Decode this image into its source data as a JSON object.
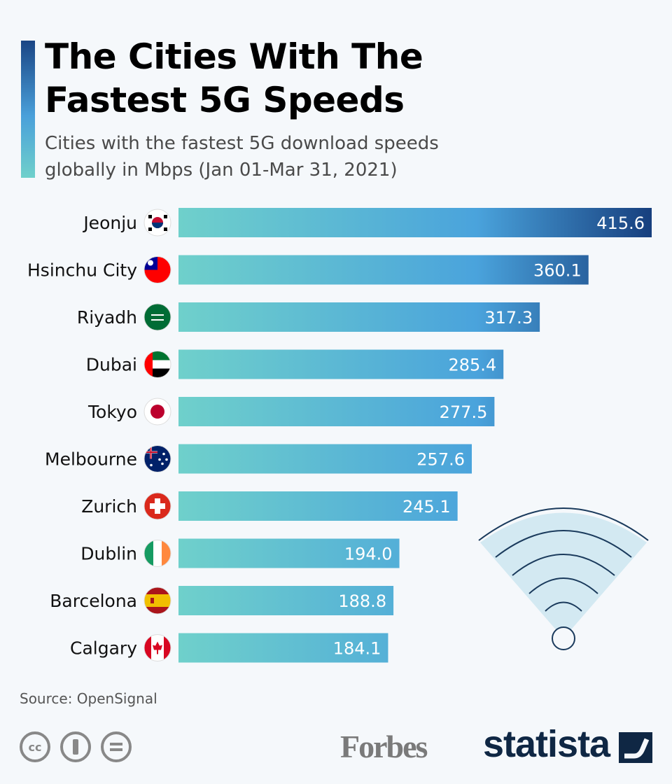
{
  "header": {
    "title_line1": "The Cities With The",
    "title_line2": "Fastest 5G Speeds",
    "subtitle_line1": "Cities with the fastest 5G download speeds",
    "subtitle_line2": "globally in Mbps (Jan 01-Mar 31, 2021)"
  },
  "chart_data": {
    "type": "bar",
    "orientation": "horizontal",
    "title": "The Cities With The Fastest 5G Speeds",
    "subtitle": "Cities with the fastest 5G download speeds globally in Mbps (Jan 01-Mar 31, 2021)",
    "categories": [
      "Jeonju",
      "Hsinchu City",
      "Riyadh",
      "Dubai",
      "Tokyo",
      "Melbourne",
      "Zurich",
      "Dublin",
      "Barcelona",
      "Calgary"
    ],
    "values": [
      415.6,
      360.1,
      317.3,
      285.4,
      277.5,
      257.6,
      245.1,
      194.0,
      188.8,
      184.1
    ],
    "value_labels": [
      "415.6",
      "360.1",
      "317.3",
      "285.4",
      "277.5",
      "257.6",
      "245.1",
      "194.0",
      "188.8",
      "184.1"
    ],
    "flags": [
      "south-korea",
      "taiwan",
      "saudi-arabia",
      "uae",
      "japan",
      "australia",
      "switzerland",
      "ireland",
      "spain",
      "canada"
    ],
    "xlim": [
      0,
      415.6
    ],
    "grid": false,
    "colors": {
      "gradient_start": "#6fd0cb",
      "gradient_mid": "#4aa3dc",
      "gradient_end": "#173f7e"
    }
  },
  "footer": {
    "source": "Source: OpenSignal",
    "cc_label": "cc",
    "brand1": "Forbes",
    "brand2": "statista"
  }
}
